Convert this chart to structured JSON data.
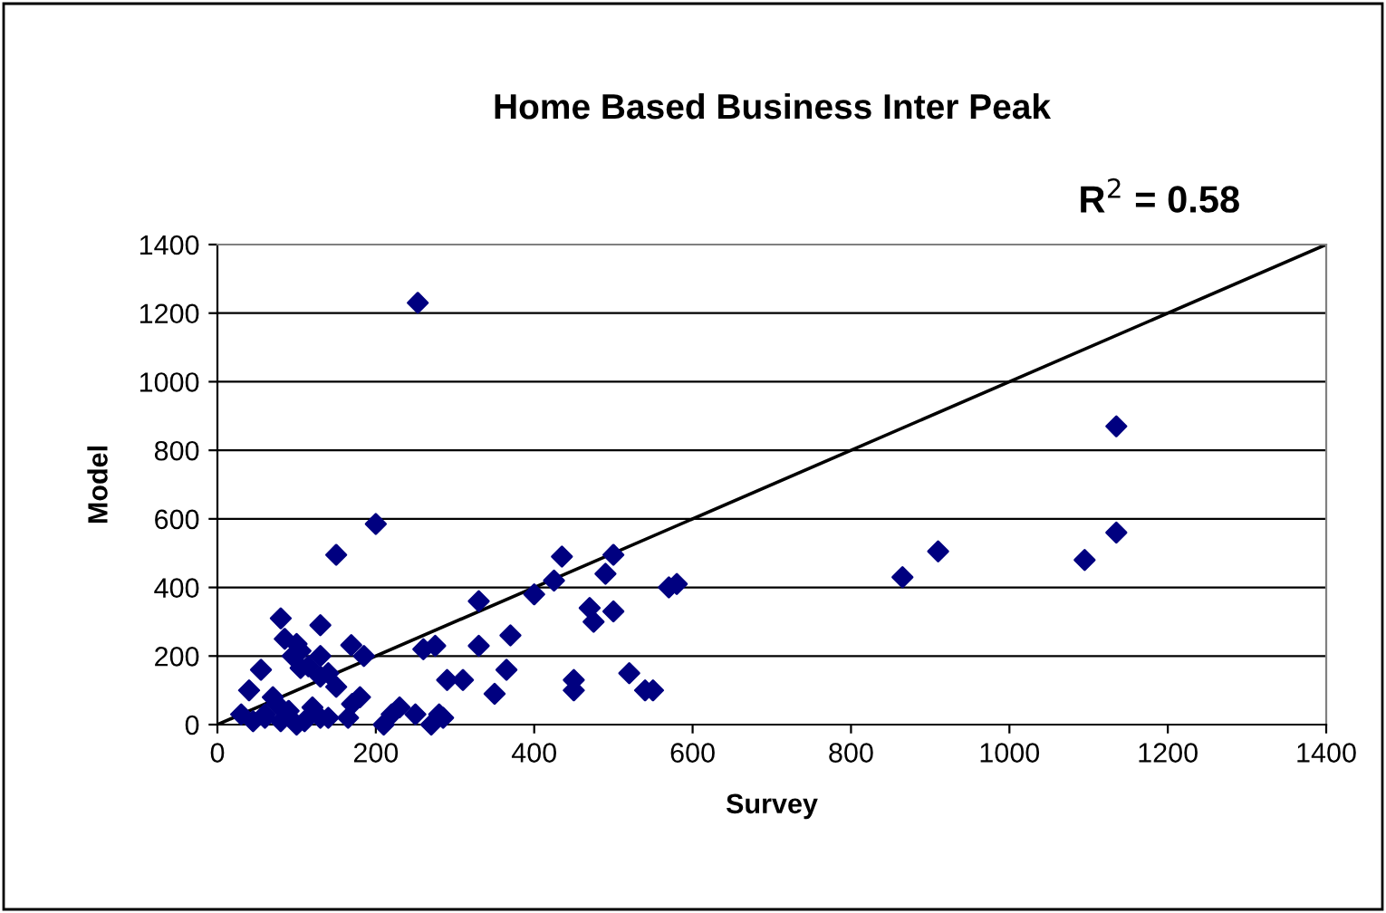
{
  "chart_data": {
    "type": "scatter",
    "title": "Home Based Business Inter Peak",
    "xlabel": "Survey",
    "ylabel": "Model",
    "annotations": [
      "R$^{2}$ = 0.58"
    ],
    "xlim": [
      0,
      1400
    ],
    "xticks": [
      0,
      200,
      400,
      600,
      800,
      1000,
      1200,
      1400
    ],
    "ylim": [
      0,
      1400
    ],
    "yticks": [
      0,
      200,
      400,
      600,
      800,
      1000,
      1200,
      1400
    ],
    "grid": "y",
    "marker": "diamond",
    "series": [
      {
        "color": "#000080",
        "x": [
          253,
          150,
          200,
          80,
          130,
          85,
          100,
          95,
          105,
          130,
          140,
          130,
          150,
          169,
          115,
          105,
          40,
          55,
          30,
          60,
          70,
          75,
          90,
          100,
          120,
          130,
          60,
          45,
          80,
          110,
          140,
          180,
          170,
          165,
          185,
          210,
          220,
          230,
          250,
          260,
          275,
          270,
          280,
          285,
          290,
          310,
          330,
          330,
          350,
          365,
          370,
          400,
          425,
          435,
          450,
          450,
          470,
          475,
          490,
          500,
          500,
          520,
          540,
          550,
          570,
          580,
          865,
          910,
          1095,
          1135,
          1135
        ],
        "values": [
          1230,
          495,
          585,
          310,
          290,
          250,
          235,
          200,
          215,
          200,
          150,
          140,
          110,
          232,
          170,
          165,
          100,
          160,
          30,
          20,
          80,
          60,
          40,
          0,
          50,
          20,
          30,
          10,
          10,
          10,
          20,
          80,
          60,
          20,
          200,
          0,
          30,
          50,
          30,
          220,
          230,
          0,
          30,
          20,
          130,
          130,
          360,
          230,
          90,
          160,
          260,
          380,
          420,
          490,
          130,
          100,
          340,
          300,
          440,
          330,
          495,
          150,
          100,
          100,
          400,
          410,
          430,
          505,
          480,
          560,
          870
        ]
      },
      {
        "type": "line",
        "color": "#000000",
        "x": [
          0,
          1400
        ],
        "values": [
          0,
          1400
        ],
        "marker": "none"
      }
    ]
  }
}
